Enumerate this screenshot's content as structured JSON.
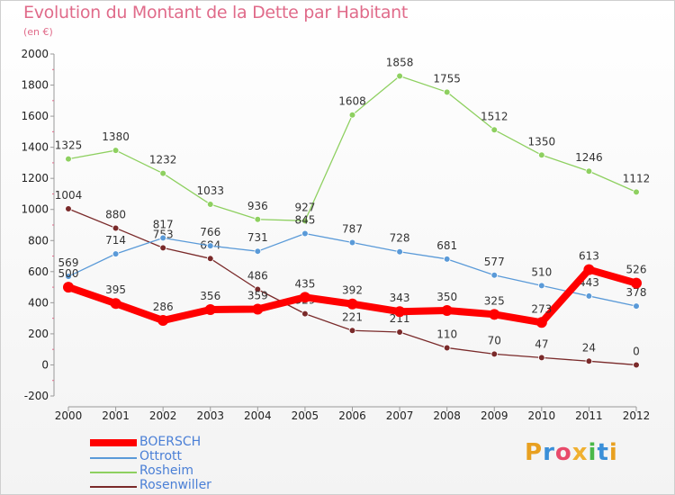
{
  "title": "Evolution du Montant de la Dette par Habitant",
  "unit": "(en €)",
  "logo": {
    "text": "Proxiti",
    "colors": [
      "#e8a020",
      "#3a8fd8",
      "#e84a6a",
      "#f0b030",
      "#4ab848",
      "#3a8fd8",
      "#e8a020"
    ]
  },
  "chart_data": {
    "type": "line",
    "title": "Evolution du Montant de la Dette par Habitant",
    "subtitle": "(en €)",
    "xlabel": "",
    "ylabel": "",
    "categories": [
      "2000",
      "2001",
      "2002",
      "2003",
      "2004",
      "2005",
      "2006",
      "2007",
      "2008",
      "2009",
      "2010",
      "2011",
      "2012"
    ],
    "ylim": [
      -200,
      2000
    ],
    "yticks": [
      -200,
      0,
      200,
      400,
      600,
      800,
      1000,
      1200,
      1400,
      1600,
      1800,
      2000
    ],
    "grid": false,
    "legend": "bottom-left",
    "series": [
      {
        "name": "Rosenwiller",
        "color": "#7a2a2a",
        "values": [
          1004,
          880,
          753,
          684,
          486,
          329,
          221,
          211,
          110,
          70,
          47,
          24,
          0
        ],
        "labels": [
          "1004",
          "880",
          "753",
          "684",
          "486",
          "329",
          "221",
          "211",
          "110",
          "70",
          "47",
          "24",
          "0"
        ]
      },
      {
        "name": "Rosheim",
        "color": "#8ed060",
        "values": [
          1325,
          1380,
          1232,
          1033,
          936,
          927,
          1608,
          1858,
          1755,
          1512,
          1350,
          1246,
          1112
        ],
        "labels": [
          "1325",
          "1380",
          "1232",
          "1033",
          "936",
          "927",
          "1608",
          "1858",
          "1755",
          "1512",
          "1350",
          "1246",
          "1112"
        ]
      },
      {
        "name": "Ottrott",
        "color": "#5a9ad8",
        "values": [
          569,
          714,
          817,
          766,
          731,
          845,
          787,
          728,
          681,
          577,
          510,
          443,
          378
        ],
        "labels": [
          "569",
          "714",
          "817",
          "766",
          "731",
          "845",
          "787",
          "728",
          "681",
          "577",
          "510",
          "443",
          "378"
        ]
      },
      {
        "name": "BOERSCH",
        "color": "#ff0000",
        "values": [
          500,
          395,
          286,
          356,
          359,
          435,
          392,
          343,
          350,
          325,
          273,
          613,
          526
        ],
        "labels": [
          "500",
          "395",
          "286",
          "356",
          "359",
          "435",
          "392",
          "343",
          "350",
          "325",
          "273",
          "613",
          "526"
        ]
      }
    ],
    "legend_order": [
      "BOERSCH",
      "Ottrott",
      "Rosheim",
      "Rosenwiller"
    ]
  }
}
